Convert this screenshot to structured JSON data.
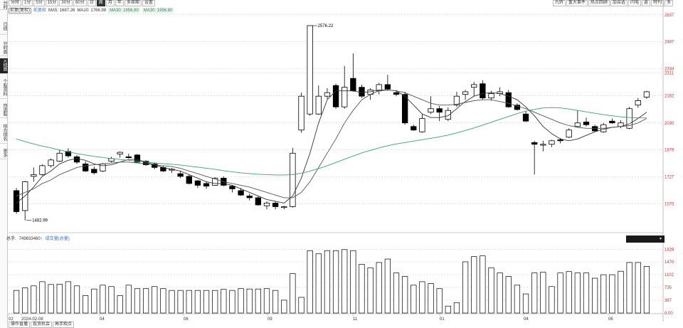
{
  "left_tabs": [
    "分时",
    "日线",
    "分时图",
    "K线图",
    "个股资料",
    "自选股",
    "综合排名",
    "更多"
  ],
  "toolbar": {
    "periods": [
      "分时",
      "1分",
      "5分",
      "15分",
      "30分",
      "60分",
      "日",
      "周",
      "月",
      "年",
      "多周期",
      "设置"
    ],
    "active_period": "周"
  },
  "right_tools": [
    "九转",
    "重大事件",
    "热点回顾",
    "加自选",
    "闪电",
    "返",
    "特刊",
    "多"
  ],
  "ma": {
    "badge": "前复(复权)",
    "badge2": "前复权",
    "ma5": "MA5: 1687.26",
    "ma10": "MA10: 1766.98",
    "ma30a": "MA30: 1956.80",
    "ma30b": "MA30: 1956.80"
  },
  "price_axis": [
    "2637",
    "2487",
    "2334",
    "2311",
    "2182",
    "2030",
    "1879",
    "1727",
    "1575"
  ],
  "volume_axis": [
    "1828",
    "1470",
    "1102",
    "735",
    "367",
    "0.00"
  ],
  "x_axis": [
    "02",
    "2024-02-08",
    "04",
    "06",
    "09",
    "11",
    "01",
    "04",
    "06"
  ],
  "annotations": {
    "high": "2576.22",
    "low": "1482.99"
  },
  "volume_header": {
    "label": "总手:",
    "value": "749833460↑",
    "link": "成交量(总量)"
  },
  "bottom_tabs": [
    "操作直播",
    "投资机会",
    "高手观点"
  ],
  "chart_data": {
    "type": "candlestick",
    "y_range": [
      1450,
      2640
    ],
    "volume_range": [
      0,
      2000
    ],
    "series": [
      {
        "o": 1650,
        "c": 1532,
        "h": 1665,
        "l": 1520,
        "v": 650
      },
      {
        "o": 1538,
        "c": 1700,
        "h": 1705,
        "l": 1483,
        "v": 720
      },
      {
        "o": 1730,
        "c": 1740,
        "h": 1780,
        "l": 1700,
        "v": 780
      },
      {
        "o": 1740,
        "c": 1790,
        "h": 1798,
        "l": 1735,
        "v": 900
      },
      {
        "o": 1790,
        "c": 1822,
        "h": 1830,
        "l": 1780,
        "v": 820
      },
      {
        "o": 1815,
        "c": 1860,
        "h": 1880,
        "l": 1810,
        "v": 830
      },
      {
        "o": 1870,
        "c": 1845,
        "h": 1888,
        "l": 1835,
        "v": 900
      },
      {
        "o": 1840,
        "c": 1810,
        "h": 1850,
        "l": 1800,
        "v": 780
      },
      {
        "o": 1800,
        "c": 1760,
        "h": 1815,
        "l": 1755,
        "v": 500
      },
      {
        "o": 1770,
        "c": 1750,
        "h": 1785,
        "l": 1740,
        "v": 690
      },
      {
        "o": 1760,
        "c": 1800,
        "h": 1806,
        "l": 1755,
        "v": 800
      },
      {
        "o": 1815,
        "c": 1830,
        "h": 1840,
        "l": 1808,
        "v": 760
      },
      {
        "o": 1855,
        "c": 1865,
        "h": 1870,
        "l": 1835,
        "v": 500
      },
      {
        "o": 1840,
        "c": 1835,
        "h": 1858,
        "l": 1830,
        "v": 800
      },
      {
        "o": 1850,
        "c": 1810,
        "h": 1856,
        "l": 1805,
        "v": 700
      },
      {
        "o": 1815,
        "c": 1795,
        "h": 1820,
        "l": 1790,
        "v": 700
      },
      {
        "o": 1800,
        "c": 1780,
        "h": 1808,
        "l": 1770,
        "v": 760
      },
      {
        "o": 1780,
        "c": 1760,
        "h": 1790,
        "l": 1755,
        "v": 700
      },
      {
        "o": 1765,
        "c": 1770,
        "h": 1778,
        "l": 1750,
        "v": 650
      },
      {
        "o": 1745,
        "c": 1730,
        "h": 1760,
        "l": 1720,
        "v": 650
      },
      {
        "o": 1730,
        "c": 1690,
        "h": 1738,
        "l": 1685,
        "v": 650
      },
      {
        "o": 1705,
        "c": 1680,
        "h": 1710,
        "l": 1665,
        "v": 650
      },
      {
        "o": 1690,
        "c": 1675,
        "h": 1700,
        "l": 1660,
        "v": 650
      },
      {
        "o": 1680,
        "c": 1720,
        "h": 1725,
        "l": 1678,
        "v": 650
      },
      {
        "o": 1720,
        "c": 1680,
        "h": 1730,
        "l": 1675,
        "v": 680
      },
      {
        "o": 1675,
        "c": 1660,
        "h": 1680,
        "l": 1640,
        "v": 650
      },
      {
        "o": 1650,
        "c": 1625,
        "h": 1665,
        "l": 1620,
        "v": 700
      },
      {
        "o": 1620,
        "c": 1610,
        "h": 1633,
        "l": 1595,
        "v": 690
      },
      {
        "o": 1610,
        "c": 1570,
        "h": 1618,
        "l": 1565,
        "v": 690
      },
      {
        "o": 1565,
        "c": 1580,
        "h": 1590,
        "l": 1545,
        "v": 700
      },
      {
        "o": 1580,
        "c": 1560,
        "h": 1590,
        "l": 1545,
        "v": 650
      },
      {
        "o": 1555,
        "c": 1560,
        "h": 1565,
        "l": 1545,
        "v": 370
      },
      {
        "o": 1560,
        "c": 1860,
        "h": 1890,
        "l": 1555,
        "v": 1130
      },
      {
        "o": 1990,
        "c": 2180,
        "h": 2200,
        "l": 1975,
        "v": 450
      },
      {
        "o": 2080,
        "c": 2576,
        "h": 2576,
        "l": 2070,
        "v": 1790
      },
      {
        "o": 2080,
        "c": 2180,
        "h": 2240,
        "l": 2075,
        "v": 1700
      },
      {
        "o": 2180,
        "c": 2200,
        "h": 2225,
        "l": 2165,
        "v": 1790
      },
      {
        "o": 2240,
        "c": 2120,
        "h": 2250,
        "l": 2110,
        "v": 1790
      },
      {
        "o": 2120,
        "c": 2230,
        "h": 2350,
        "l": 2110,
        "v": 1820
      },
      {
        "o": 2280,
        "c": 2210,
        "h": 2420,
        "l": 2205,
        "v": 1790
      },
      {
        "o": 2230,
        "c": 2180,
        "h": 2245,
        "l": 2170,
        "v": 1400
      },
      {
        "o": 2190,
        "c": 2215,
        "h": 2225,
        "l": 2160,
        "v": 1300
      },
      {
        "o": 2210,
        "c": 2245,
        "h": 2255,
        "l": 2190,
        "v": 1450
      },
      {
        "o": 2245,
        "c": 2220,
        "h": 2300,
        "l": 2210,
        "v": 1550
      },
      {
        "o": 2200,
        "c": 2190,
        "h": 2215,
        "l": 2180,
        "v": 1150
      },
      {
        "o": 2190,
        "c": 2030,
        "h": 2205,
        "l": 2020,
        "v": 1050
      },
      {
        "o": 2010,
        "c": 1990,
        "h": 2020,
        "l": 1985,
        "v": 800
      },
      {
        "o": 1980,
        "c": 2055,
        "h": 2080,
        "l": 1975,
        "v": 900
      },
      {
        "o": 2090,
        "c": 2110,
        "h": 2180,
        "l": 2080,
        "v": 850
      },
      {
        "o": 2110,
        "c": 2090,
        "h": 2125,
        "l": 2040,
        "v": 700
      },
      {
        "o": 2050,
        "c": 2100,
        "h": 2118,
        "l": 2040,
        "v": 200
      },
      {
        "o": 2130,
        "c": 2180,
        "h": 2205,
        "l": 2120,
        "v": 300
      },
      {
        "o": 2190,
        "c": 2205,
        "h": 2215,
        "l": 2160,
        "v": 1470
      },
      {
        "o": 2230,
        "c": 2245,
        "h": 2260,
        "l": 2180,
        "v": 1620
      },
      {
        "o": 2250,
        "c": 2170,
        "h": 2270,
        "l": 2160,
        "v": 1640
      },
      {
        "o": 2170,
        "c": 2195,
        "h": 2210,
        "l": 2155,
        "v": 1300
      },
      {
        "o": 2195,
        "c": 2205,
        "h": 2230,
        "l": 2180,
        "v": 1150
      },
      {
        "o": 2200,
        "c": 2120,
        "h": 2215,
        "l": 2115,
        "v": 1050
      },
      {
        "o": 2130,
        "c": 2105,
        "h": 2140,
        "l": 2100,
        "v": 800
      },
      {
        "o": 2080,
        "c": 2040,
        "h": 2095,
        "l": 2035,
        "v": 550
      },
      {
        "o": 1920,
        "c": 1910,
        "h": 1930,
        "l": 1740,
        "v": 1150
      },
      {
        "o": 1905,
        "c": 1910,
        "h": 1930,
        "l": 1870,
        "v": 1170
      },
      {
        "o": 1910,
        "c": 1930,
        "h": 1935,
        "l": 1895,
        "v": 760
      },
      {
        "o": 1935,
        "c": 1930,
        "h": 1945,
        "l": 1915,
        "v": 1150
      },
      {
        "o": 1950,
        "c": 1990,
        "h": 2000,
        "l": 1945,
        "v": 1190
      },
      {
        "o": 2010,
        "c": 2030,
        "h": 2100,
        "l": 2005,
        "v": 1150
      },
      {
        "o": 2035,
        "c": 2020,
        "h": 2060,
        "l": 2010,
        "v": 1150
      },
      {
        "o": 2010,
        "c": 1985,
        "h": 2020,
        "l": 1985,
        "v": 1000
      },
      {
        "o": 1980,
        "c": 2020,
        "h": 2030,
        "l": 1975,
        "v": 1100
      },
      {
        "o": 2040,
        "c": 2030,
        "h": 2055,
        "l": 2025,
        "v": 1100
      },
      {
        "o": 2010,
        "c": 2030,
        "h": 2045,
        "l": 2000,
        "v": 1200
      },
      {
        "o": 2000,
        "c": 2110,
        "h": 2120,
        "l": 1995,
        "v": 1450
      },
      {
        "o": 2130,
        "c": 2155,
        "h": 2170,
        "l": 2115,
        "v": 1450
      },
      {
        "o": 2175,
        "c": 2205,
        "h": 2210,
        "l": 2165,
        "v": 1340
      }
    ],
    "ma_lines": [
      {
        "name": "MA5",
        "color": "#333333",
        "values": [
          1580,
          1620,
          1670,
          1730,
          1760,
          1800,
          1820,
          1830,
          1820,
          1800,
          1790,
          1795,
          1810,
          1825,
          1825,
          1810,
          1795,
          1780,
          1770,
          1760,
          1740,
          1720,
          1700,
          1690,
          1690,
          1680,
          1660,
          1640,
          1620,
          1600,
          1590,
          1580,
          1620,
          1720,
          1860,
          2030,
          2160,
          2210,
          2210,
          2210,
          2200,
          2205,
          2215,
          2215,
          2210,
          2180,
          2130,
          2080,
          2060,
          2060,
          2070,
          2110,
          2150,
          2180,
          2195,
          2200,
          2195,
          2180,
          2160,
          2120,
          2070,
          2010,
          1970,
          1940,
          1930,
          1940,
          1960,
          1980,
          1995,
          2005,
          2010,
          2025,
          2055,
          2090
        ]
      },
      {
        "name": "MA10",
        "color": "#555555",
        "values": [
          1620,
          1640,
          1660,
          1690,
          1710,
          1740,
          1760,
          1780,
          1790,
          1795,
          1800,
          1805,
          1810,
          1810,
          1805,
          1800,
          1795,
          1790,
          1785,
          1775,
          1760,
          1745,
          1730,
          1715,
          1700,
          1690,
          1680,
          1670,
          1655,
          1640,
          1625,
          1610,
          1610,
          1640,
          1700,
          1780,
          1860,
          1940,
          2030,
          2100,
          2160,
          2190,
          2210,
          2215,
          2210,
          2200,
          2180,
          2160,
          2140,
          2130,
          2130,
          2135,
          2145,
          2155,
          2160,
          2160,
          2150,
          2140,
          2125,
          2110,
          2090,
          2070,
          2050,
          2030,
          2015,
          2005,
          2000,
          2000,
          2000,
          2005,
          2010,
          2015,
          2030,
          2055
        ]
      },
      {
        "name": "MA30",
        "color": "#3aa36b",
        "values": [
          1940,
          1925,
          1912,
          1900,
          1890,
          1878,
          1868,
          1858,
          1850,
          1842,
          1836,
          1830,
          1825,
          1820,
          1815,
          1810,
          1806,
          1802,
          1798,
          1794,
          1788,
          1782,
          1776,
          1770,
          1762,
          1756,
          1750,
          1746,
          1742,
          1740,
          1738,
          1738,
          1740,
          1748,
          1760,
          1774,
          1790,
          1808,
          1826,
          1844,
          1862,
          1876,
          1890,
          1902,
          1912,
          1920,
          1928,
          1936,
          1944,
          1952,
          1962,
          1974,
          1988,
          2002,
          2018,
          2034,
          2050,
          2066,
          2082,
          2096,
          2106,
          2114,
          2116,
          2114,
          2108,
          2100,
          2092,
          2084,
          2076,
          2070,
          2064,
          2060,
          2058,
          2058
        ]
      }
    ]
  }
}
